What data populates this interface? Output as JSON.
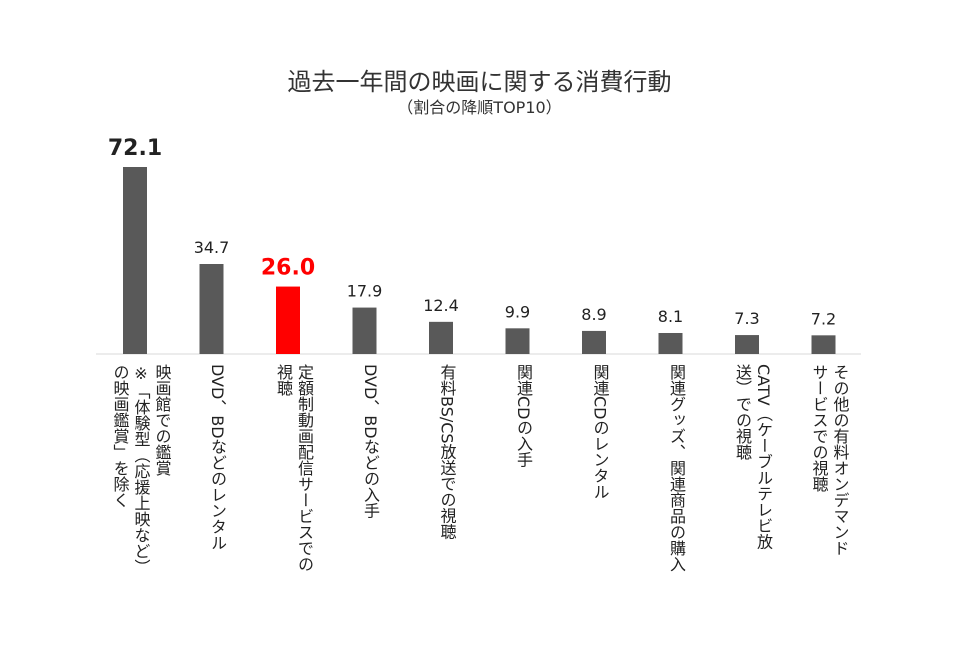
{
  "chart_data": {
    "type": "bar",
    "title": "過去一年間の映画に関する消費行動",
    "subtitle": "（割合の降順TOP10）",
    "categories": [
      "映画館での鑑賞\n※「体験型（応援上映など）\nの映画鑑賞」を除く",
      "DVD、BDなどのレンタル",
      "定額制動画配信サービスでの\n視聴",
      "DVD、BDなどの入手",
      "有料BS/CS放送での視聴",
      "関連CDの入手",
      "関連CDのレンタル",
      "関連グッズ、関連商品の購入",
      "CATV（ケーブルテレビ放\n送）での視聴",
      "その他の有料オンデマンド\nサービスでの視聴"
    ],
    "values": [
      72.1,
      34.7,
      26.0,
      17.9,
      12.4,
      9.9,
      8.9,
      8.1,
      7.3,
      7.2
    ],
    "value_labels": [
      "72.1",
      "34.7",
      "26.0",
      "17.9",
      "12.4",
      "9.9",
      "8.9",
      "8.1",
      "7.3",
      "7.2"
    ],
    "highlight_index": 2,
    "bar_color": "#595959",
    "highlight_color": "#ff0000",
    "label_color": "#222222",
    "axis_color": "#d9d9d9",
    "grid": false,
    "legend": "none"
  }
}
